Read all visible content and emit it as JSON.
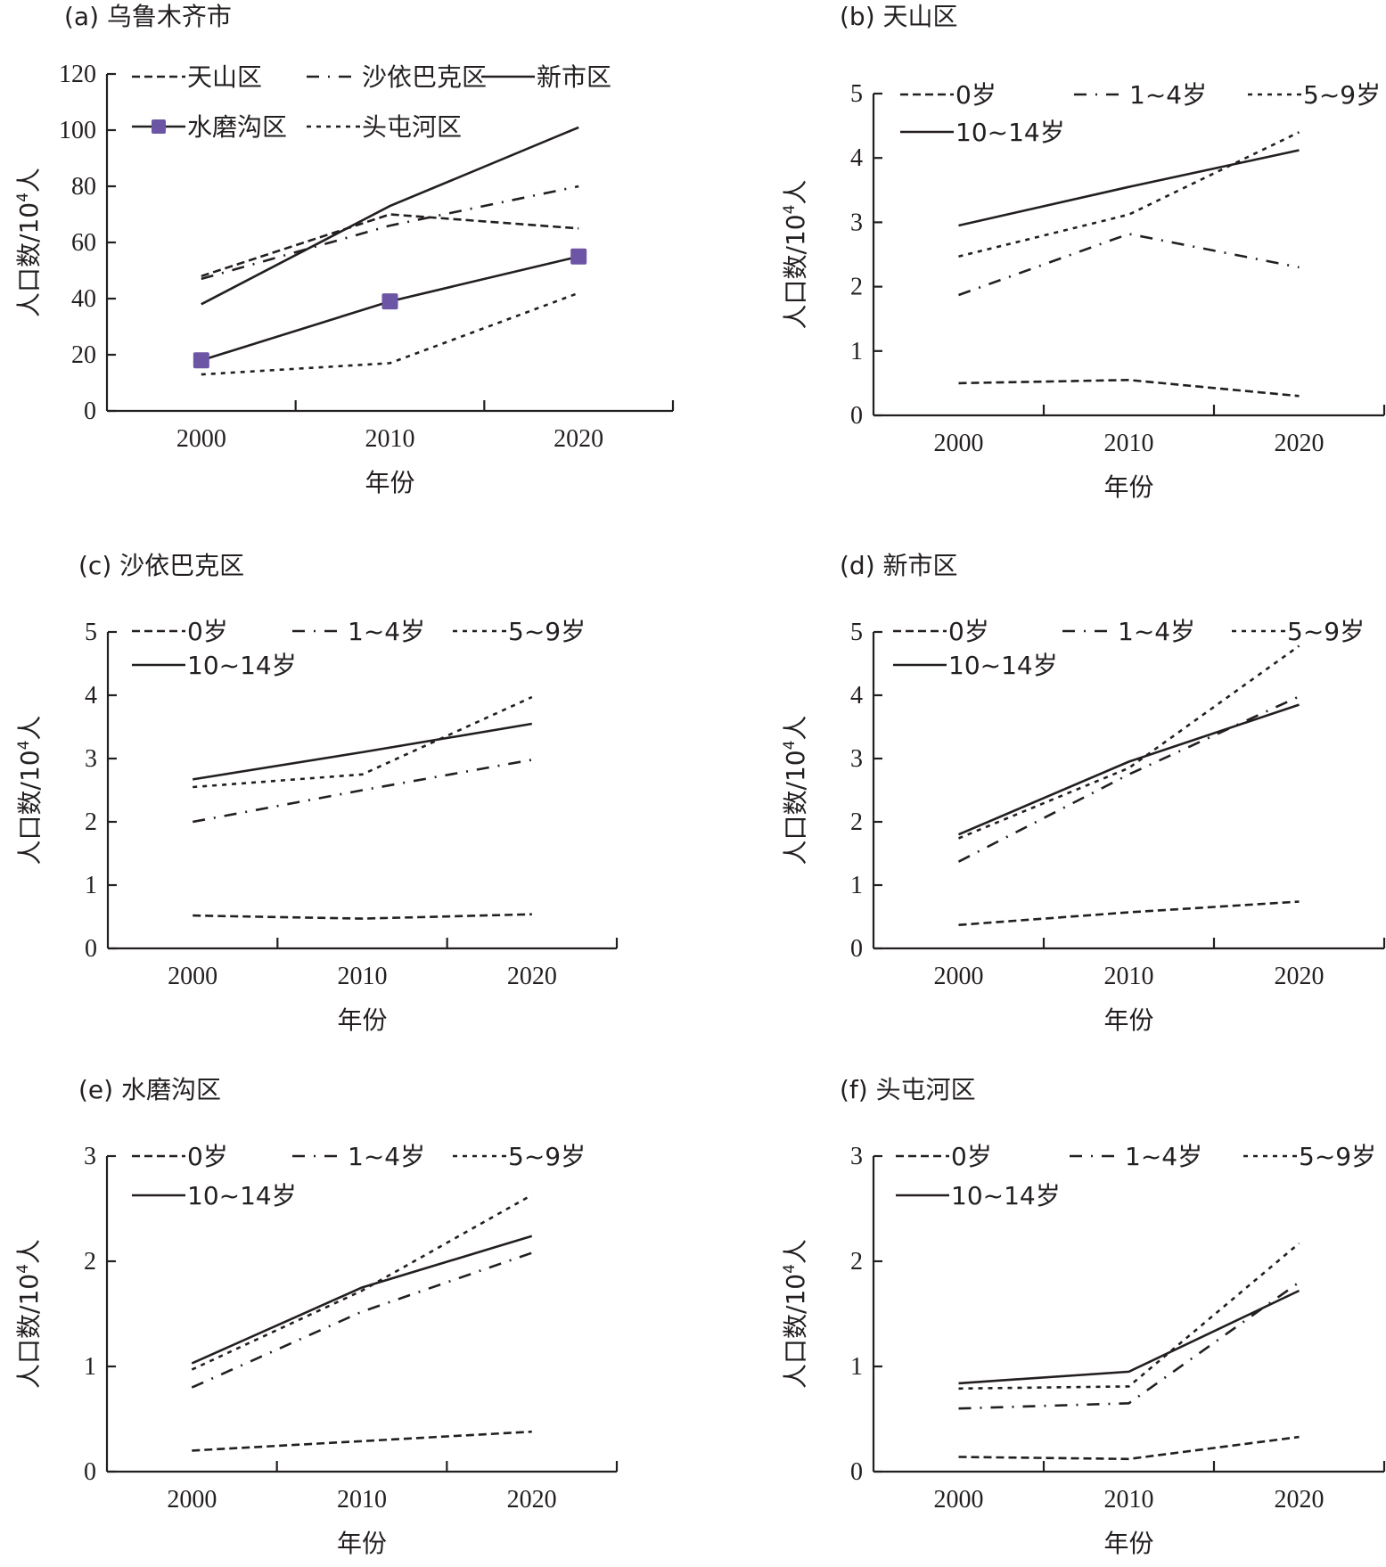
{
  "colors": {
    "line": "#231f20",
    "marker": "#6b55a4"
  },
  "chart_data": [
    {
      "type": "line",
      "title": "(a) 乌鲁木齐市",
      "xlabel": "年份",
      "ylabel": "人口数/10⁴人",
      "ylabel_parts": {
        "main": "人口数/10",
        "sup": "4",
        "unit": "人"
      },
      "categories": [
        "2000",
        "2010",
        "2020"
      ],
      "ylim": [
        0,
        120
      ],
      "yticks": [
        0,
        20,
        40,
        60,
        80,
        100,
        120
      ],
      "legend_position": "top",
      "series": [
        {
          "name": "天山区",
          "style": "dashed",
          "values": [
            48,
            70,
            65
          ]
        },
        {
          "name": "沙依巴克区",
          "style": "dashdot",
          "values": [
            47,
            66,
            80
          ]
        },
        {
          "name": "新市区",
          "style": "solid",
          "values": [
            38,
            73,
            101
          ]
        },
        {
          "name": "水磨沟区",
          "style": "solid-marker",
          "values": [
            18,
            39,
            55
          ]
        },
        {
          "name": "头屯河区",
          "style": "dotted",
          "values": [
            13,
            17,
            42
          ]
        }
      ]
    },
    {
      "type": "line",
      "title": "(b) 天山区",
      "xlabel": "年份",
      "ylabel": "人口数/10⁴人",
      "ylabel_parts": {
        "main": "人口数/10",
        "sup": "4",
        "unit": "人"
      },
      "categories": [
        "2000",
        "2010",
        "2020"
      ],
      "ylim": [
        0,
        5
      ],
      "yticks": [
        0,
        1,
        2,
        3,
        4,
        5
      ],
      "legend_position": "top",
      "series": [
        {
          "name": "0岁",
          "style": "dashed",
          "values": [
            0.5,
            0.55,
            0.3
          ]
        },
        {
          "name": "1~4岁",
          "style": "dashdot",
          "values": [
            1.87,
            2.82,
            2.3
          ]
        },
        {
          "name": "5~9岁",
          "style": "dotted",
          "values": [
            2.47,
            3.12,
            4.4
          ]
        },
        {
          "name": "10~14岁",
          "style": "solid",
          "values": [
            2.95,
            3.55,
            4.12
          ]
        }
      ]
    },
    {
      "type": "line",
      "title": "(c) 沙依巴克区",
      "xlabel": "年份",
      "ylabel": "人口数/10⁴人",
      "ylabel_parts": {
        "main": "人口数/10",
        "sup": "4",
        "unit": "人"
      },
      "categories": [
        "2000",
        "2010",
        "2020"
      ],
      "ylim": [
        0,
        5
      ],
      "yticks": [
        0,
        1,
        2,
        3,
        4,
        5
      ],
      "legend_position": "top",
      "series": [
        {
          "name": "0岁",
          "style": "dashed",
          "values": [
            0.52,
            0.47,
            0.54
          ]
        },
        {
          "name": "1~4岁",
          "style": "dashdot",
          "values": [
            2.0,
            2.5,
            2.98
          ]
        },
        {
          "name": "5~9岁",
          "style": "dotted",
          "values": [
            2.55,
            2.75,
            3.97
          ]
        },
        {
          "name": "10~14岁",
          "style": "solid",
          "values": [
            2.67,
            3.1,
            3.55
          ]
        }
      ]
    },
    {
      "type": "line",
      "title": "(d) 新市区",
      "xlabel": "年份",
      "ylabel": "人口数/10⁴人",
      "ylabel_parts": {
        "main": "人口数/10",
        "sup": "4",
        "unit": "人"
      },
      "categories": [
        "2000",
        "2010",
        "2020"
      ],
      "ylim": [
        0,
        5
      ],
      "yticks": [
        0,
        1,
        2,
        3,
        4,
        5
      ],
      "legend_position": "top",
      "series": [
        {
          "name": "0岁",
          "style": "dashed",
          "values": [
            0.37,
            0.57,
            0.74
          ]
        },
        {
          "name": "1~4岁",
          "style": "dashdot",
          "values": [
            1.37,
            2.75,
            3.98
          ]
        },
        {
          "name": "5~9岁",
          "style": "dotted",
          "values": [
            1.74,
            2.85,
            4.78
          ]
        },
        {
          "name": "10~14岁",
          "style": "solid",
          "values": [
            1.8,
            2.95,
            3.85
          ]
        }
      ]
    },
    {
      "type": "line",
      "title": "(e) 水磨沟区",
      "xlabel": "年份",
      "ylabel": "人口数/10⁴人",
      "ylabel_parts": {
        "main": "人口数/10",
        "sup": "4",
        "unit": "人"
      },
      "categories": [
        "2000",
        "2010",
        "2020"
      ],
      "ylim": [
        0,
        3
      ],
      "yticks": [
        0,
        1,
        2,
        3
      ],
      "legend_position": "top",
      "series": [
        {
          "name": "0岁",
          "style": "dashed",
          "values": [
            0.2,
            0.29,
            0.38
          ]
        },
        {
          "name": "1~4岁",
          "style": "dashdot",
          "values": [
            0.8,
            1.52,
            2.08
          ]
        },
        {
          "name": "5~9岁",
          "style": "dotted",
          "values": [
            0.97,
            1.72,
            2.63
          ]
        },
        {
          "name": "10~14岁",
          "style": "solid",
          "values": [
            1.03,
            1.75,
            2.24
          ]
        }
      ]
    },
    {
      "type": "line",
      "title": "(f) 头屯河区",
      "xlabel": "年份",
      "ylabel": "人口数/10⁴人",
      "ylabel_parts": {
        "main": "人口数/10",
        "sup": "4",
        "unit": "人"
      },
      "categories": [
        "2000",
        "2010",
        "2020"
      ],
      "ylim": [
        0,
        3
      ],
      "yticks": [
        0,
        1,
        2,
        3
      ],
      "legend_position": "top",
      "series": [
        {
          "name": "0岁",
          "style": "dashed",
          "values": [
            0.14,
            0.12,
            0.33
          ]
        },
        {
          "name": "1~4岁",
          "style": "dashdot",
          "values": [
            0.6,
            0.65,
            1.8
          ]
        },
        {
          "name": "5~9岁",
          "style": "dotted",
          "values": [
            0.79,
            0.81,
            2.17
          ]
        },
        {
          "name": "10~14岁",
          "style": "solid",
          "values": [
            0.84,
            0.95,
            1.72
          ]
        }
      ]
    }
  ]
}
